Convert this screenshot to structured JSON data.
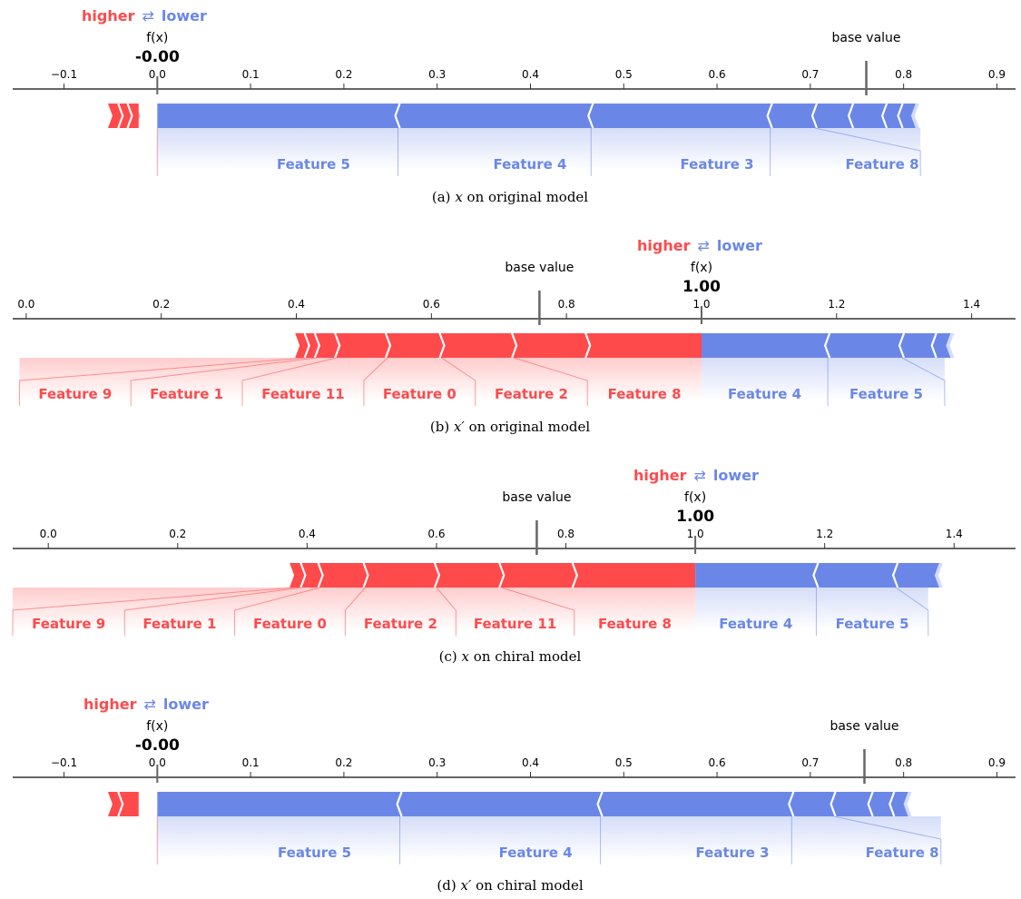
{
  "colors": {
    "higher": "#ff4a4c",
    "lower": "#6a87e8",
    "axis": "#333333",
    "marker": "#666666"
  },
  "legend": {
    "higher_label": "higher",
    "arrow_symbol": "⇄",
    "lower_label": "lower"
  },
  "chart_data": [
    {
      "type": "shap-force-plot",
      "caption": {
        "tag": "(a)",
        "var": "x",
        "rest": " on original model"
      },
      "xlim": [
        -0.155,
        0.92
      ],
      "ticks": [
        -0.1,
        0.0,
        0.1,
        0.2,
        0.3,
        0.4,
        0.5,
        0.6,
        0.7,
        0.8,
        0.9
      ],
      "tick_labels": [
        "−0.1",
        "0.0",
        "0.1",
        "0.2",
        "0.3",
        "0.4",
        "0.5",
        "0.6",
        "0.7",
        "0.8",
        "0.9"
      ],
      "fx_label": "f(x)",
      "fx_value": -0.0,
      "fx_text": "-0.00",
      "base_label": "base value",
      "base_value": 0.76,
      "push_higher": [
        -0.048,
        -0.04,
        -0.03,
        -0.02
      ],
      "push_lower": [
        0.258,
        0.465,
        0.657,
        0.705,
        0.744,
        0.78,
        0.797,
        0.808
      ],
      "labels": [
        {
          "text": "Feature 5",
          "side": "lower",
          "seg_start": 0.0,
          "seg_end": 0.258,
          "label_x": 0.077,
          "label_end": 0.258
        },
        {
          "text": "Feature 4",
          "side": "lower",
          "seg_start": 0.258,
          "seg_end": 0.465,
          "label_x": 0.334,
          "label_end": 0.465
        },
        {
          "text": "Feature 3",
          "side": "lower",
          "seg_start": 0.465,
          "seg_end": 0.657,
          "label_x": 0.543,
          "label_end": 0.657
        },
        {
          "text": "Feature 8",
          "side": "lower",
          "seg_start": 0.657,
          "seg_end": 0.705,
          "label_x": 0.736,
          "label_end": 0.818
        }
      ]
    },
    {
      "type": "shap-force-plot",
      "caption": {
        "tag": "(b)",
        "var": "x′",
        "rest": " on original model"
      },
      "xlim": [
        -0.02,
        1.465
      ],
      "ticks": [
        0.0,
        0.2,
        0.4,
        0.6,
        0.8,
        1.0,
        1.2,
        1.4
      ],
      "tick_labels": [
        "0.0",
        "0.2",
        "0.4",
        "0.6",
        "0.8",
        "1.0",
        "1.2",
        "1.4"
      ],
      "fx_label": "f(x)",
      "fx_value": 1.0,
      "fx_text": "1.00",
      "base_label": "base value",
      "base_value": 0.76,
      "push_higher": [
        0.405,
        0.415,
        0.43,
        0.46,
        0.535,
        0.615,
        0.722,
        0.831,
        1.0
      ],
      "push_lower": [
        1.187,
        1.297,
        1.345,
        1.362
      ],
      "labels": [
        {
          "text": "Feature 9",
          "side": "higher",
          "seg_start": 0.415,
          "seg_end": 0.43,
          "label_x": -0.01,
          "label_end": 0.155
        },
        {
          "text": "Feature 1",
          "side": "higher",
          "seg_start": 0.43,
          "seg_end": 0.46,
          "label_x": 0.155,
          "label_end": 0.32
        },
        {
          "text": "Feature 11",
          "side": "higher",
          "seg_start": 0.46,
          "seg_end": 0.535,
          "label_x": 0.32,
          "label_end": 0.5
        },
        {
          "text": "Feature 0",
          "side": "higher",
          "seg_start": 0.535,
          "seg_end": 0.615,
          "label_x": 0.5,
          "label_end": 0.665
        },
        {
          "text": "Feature 2",
          "side": "higher",
          "seg_start": 0.615,
          "seg_end": 0.722,
          "label_x": 0.665,
          "label_end": 0.831
        },
        {
          "text": "Feature 8",
          "side": "higher",
          "seg_start": 0.722,
          "seg_end": 0.831,
          "label_x": 0.831,
          "label_end": 1.0
        },
        {
          "text": "Feature 4",
          "side": "lower",
          "seg_start": 1.0,
          "seg_end": 1.187,
          "label_x": 1.0,
          "label_end": 1.187
        },
        {
          "text": "Feature 5",
          "side": "lower",
          "seg_start": 1.187,
          "seg_end": 1.297,
          "label_x": 1.187,
          "label_end": 1.36
        }
      ]
    },
    {
      "type": "shap-force-plot",
      "caption": {
        "tag": "(c)",
        "var": "x",
        "rest": " on chiral model"
      },
      "xlim": [
        -0.055,
        1.495
      ],
      "ticks": [
        0.0,
        0.2,
        0.4,
        0.6,
        0.8,
        1.0,
        1.2,
        1.4
      ],
      "tick_labels": [
        "0.0",
        "0.2",
        "0.4",
        "0.6",
        "0.8",
        "1.0",
        "1.2",
        "1.4"
      ],
      "fx_label": "f(x)",
      "fx_value": 1.0,
      "fx_text": "1.00",
      "base_label": "base value",
      "base_value": 0.755,
      "push_higher": [
        0.38,
        0.393,
        0.42,
        0.49,
        0.6,
        0.7,
        0.813,
        1.0
      ],
      "push_lower": [
        1.187,
        1.31,
        1.37
      ],
      "labels": [
        {
          "text": "Feature 9",
          "side": "higher",
          "seg_start": 0.38,
          "seg_end": 0.393,
          "label_x": -0.055,
          "label_end": 0.118
        },
        {
          "text": "Feature 1",
          "side": "higher",
          "seg_start": 0.393,
          "seg_end": 0.42,
          "label_x": 0.118,
          "label_end": 0.288
        },
        {
          "text": "Feature 0",
          "side": "higher",
          "seg_start": 0.42,
          "seg_end": 0.49,
          "label_x": 0.288,
          "label_end": 0.459
        },
        {
          "text": "Feature 2",
          "side": "higher",
          "seg_start": 0.49,
          "seg_end": 0.6,
          "label_x": 0.459,
          "label_end": 0.63
        },
        {
          "text": "Feature 11",
          "side": "higher",
          "seg_start": 0.6,
          "seg_end": 0.7,
          "label_x": 0.63,
          "label_end": 0.813
        },
        {
          "text": "Feature 8",
          "side": "higher",
          "seg_start": 0.7,
          "seg_end": 0.813,
          "label_x": 0.813,
          "label_end": 1.0
        },
        {
          "text": "Feature 4",
          "side": "lower",
          "seg_start": 1.0,
          "seg_end": 1.187,
          "label_x": 1.0,
          "label_end": 1.187
        },
        {
          "text": "Feature 5",
          "side": "lower",
          "seg_start": 1.187,
          "seg_end": 1.31,
          "label_x": 1.187,
          "label_end": 1.36
        }
      ]
    },
    {
      "type": "shap-force-plot",
      "caption": {
        "tag": "(d)",
        "var": "x′",
        "rest": " on chiral model"
      },
      "xlim": [
        -0.155,
        0.92
      ],
      "ticks": [
        -0.1,
        0.0,
        0.1,
        0.2,
        0.3,
        0.4,
        0.5,
        0.6,
        0.7,
        0.8,
        0.9
      ],
      "tick_labels": [
        "−0.1",
        "0.0",
        "0.1",
        "0.2",
        "0.3",
        "0.4",
        "0.5",
        "0.6",
        "0.7",
        "0.8",
        "0.9"
      ],
      "fx_label": "f(x)",
      "fx_value": -0.0,
      "fx_text": "-0.00",
      "base_label": "base value",
      "base_value": 0.758,
      "push_higher": [
        -0.048,
        -0.04,
        -0.02
      ],
      "push_lower": [
        0.26,
        0.475,
        0.68,
        0.725,
        0.765,
        0.788,
        0.8
      ],
      "labels": [
        {
          "text": "Feature 5",
          "side": "lower",
          "seg_start": 0.0,
          "seg_end": 0.26,
          "label_x": 0.077,
          "label_end": 0.26
        },
        {
          "text": "Feature 4",
          "side": "lower",
          "seg_start": 0.26,
          "seg_end": 0.475,
          "label_x": 0.336,
          "label_end": 0.475
        },
        {
          "text": "Feature 3",
          "side": "lower",
          "seg_start": 0.475,
          "seg_end": 0.68,
          "label_x": 0.553,
          "label_end": 0.68
        },
        {
          "text": "Feature 8",
          "side": "lower",
          "seg_start": 0.68,
          "seg_end": 0.725,
          "label_x": 0.757,
          "label_end": 0.84
        }
      ]
    }
  ]
}
